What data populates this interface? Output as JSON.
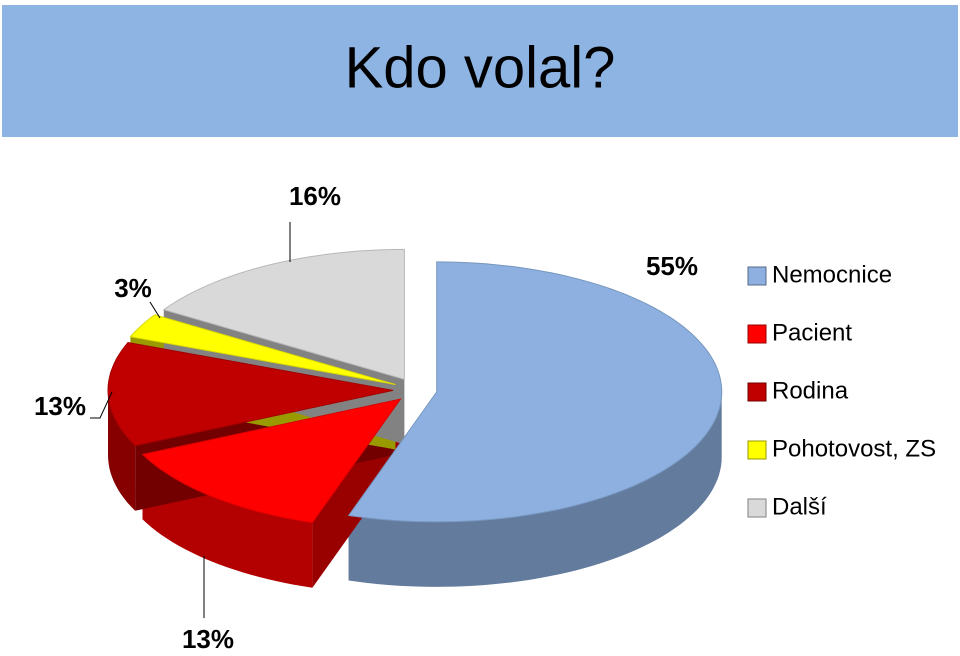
{
  "chart_data": {
    "type": "pie",
    "title": "Kdo volal?",
    "categories": [
      "Nemocnice",
      "Pacient",
      "Rodina",
      "Pohotovost, ZS",
      "Další"
    ],
    "values": [
      55,
      13,
      13,
      3,
      16
    ],
    "value_labels": [
      "55%",
      "13%",
      "13%",
      "3%",
      "16%"
    ],
    "colors": [
      "#8db0e0",
      "#ff0000",
      "#c00000",
      "#ffff00",
      "#d9d9d9"
    ],
    "legend": "right"
  }
}
